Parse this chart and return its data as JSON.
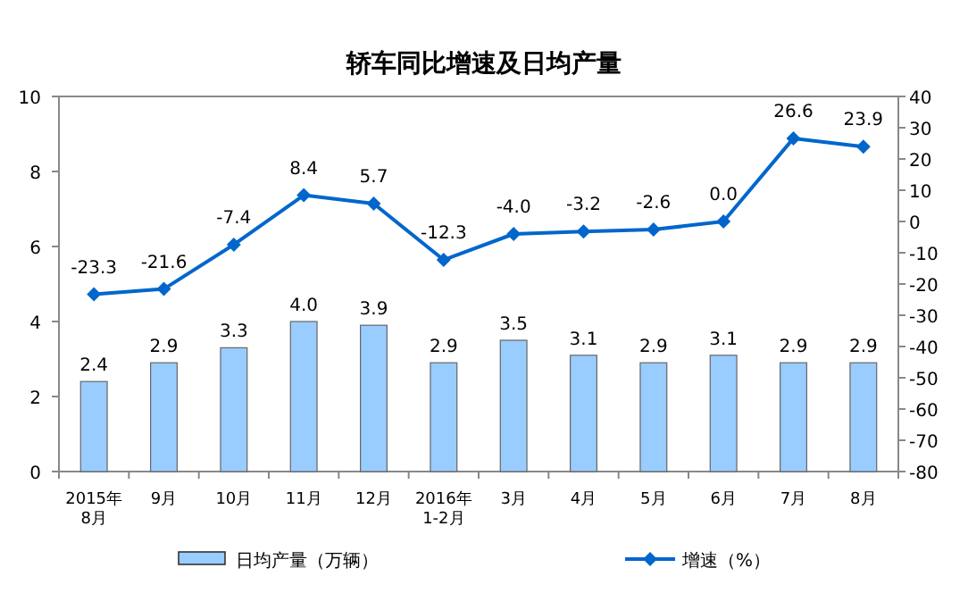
{
  "chart_data": {
    "type": "bar",
    "title": "轿车同比增速及日均产量",
    "categories": [
      "2015年\n8月",
      "9月",
      "10月",
      "11月",
      "12月",
      "2016年\n1-2月",
      "3月",
      "4月",
      "5月",
      "6月",
      "7月",
      "8月"
    ],
    "series": [
      {
        "name": "日均产量（万辆）",
        "color": "#99ccff",
        "values": [
          2.4,
          2.9,
          3.3,
          4.0,
          3.9,
          2.9,
          3.5,
          3.1,
          2.9,
          3.1,
          2.9,
          2.9
        ],
        "value_labels": [
          "2.4",
          "2.9",
          "3.3",
          "4.0",
          "3.9",
          "2.9",
          "3.5",
          "3.1",
          "2.9",
          "3.1",
          "2.9",
          "2.9"
        ]
      },
      {
        "name": "增速（%）",
        "type": "line",
        "axis": "y2",
        "color": "#0066cc",
        "marker": "diamond",
        "values": [
          -23.3,
          -21.6,
          -7.4,
          8.4,
          5.7,
          -12.3,
          -4.0,
          -3.2,
          -2.6,
          0.0,
          26.6,
          23.9
        ],
        "value_labels": [
          "-23.3",
          "-21.6",
          "-7.4",
          "8.4",
          "5.7",
          "-12.3",
          "-4.0",
          "-3.2",
          "-2.6",
          "0.0",
          "26.6",
          "23.9"
        ]
      }
    ],
    "ylim": [
      0,
      10
    ],
    "yticks": [
      0,
      2,
      4,
      6,
      8,
      10
    ],
    "y2lim": [
      -80,
      40
    ],
    "y2ticks": [
      -80,
      -70,
      -60,
      -50,
      -40,
      -30,
      -20,
      -10,
      0,
      10,
      20,
      30,
      40
    ],
    "legend": "bottom",
    "grid": false
  }
}
